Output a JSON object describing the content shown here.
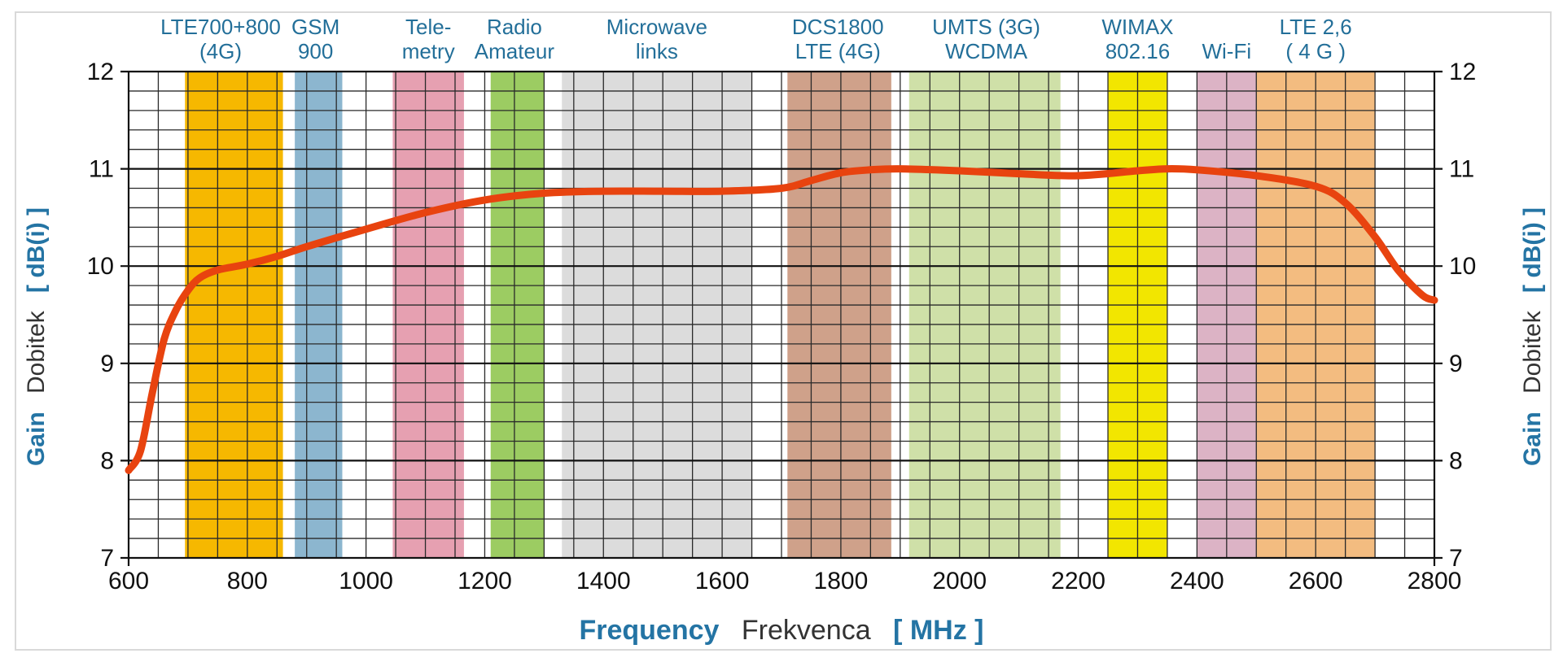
{
  "chart_data": {
    "type": "line",
    "title": "",
    "xlabel": {
      "en": "Frequency",
      "local": "Frekvenca",
      "unit": "[ MHz ]"
    },
    "ylabel": {
      "en": "Gain",
      "local": "Dobitek",
      "unit": "[ dB(i) ]"
    },
    "xlim": [
      600,
      2800
    ],
    "ylim": [
      7,
      12
    ],
    "x_ticks": [
      600,
      800,
      1000,
      1200,
      1400,
      1600,
      1800,
      2000,
      2200,
      2400,
      2600,
      2800
    ],
    "y_ticks": [
      7,
      8,
      9,
      10,
      11,
      12
    ],
    "grid": true,
    "bands": [
      {
        "lines": [
          "LTE700+800",
          "(4G)"
        ],
        "label_center": 755,
        "from": 695,
        "to": 860,
        "color": "#f6b800"
      },
      {
        "lines": [
          "GSM",
          "900"
        ],
        "label_center": 915,
        "from": 880,
        "to": 960,
        "color": "#8cb6cf"
      },
      {
        "lines": [
          "Tele-",
          "metry"
        ],
        "label_center": 1105,
        "from": 1045,
        "to": 1165,
        "color": "#e6a0b1"
      },
      {
        "lines": [
          "Radio",
          "Amateur"
        ],
        "label_center": 1250,
        "from": 1210,
        "to": 1300,
        "color": "#9ccc62"
      },
      {
        "lines": [
          "Microwave",
          "links"
        ],
        "label_center": 1490,
        "from": 1330,
        "to": 1650,
        "color": "#dcdcdc"
      },
      {
        "lines": [
          "DCS1800",
          "LTE (4G)"
        ],
        "label_center": 1795,
        "from": 1710,
        "to": 1885,
        "color": "#cfa18a"
      },
      {
        "lines": [
          "UMTS (3G)",
          "WCDMA"
        ],
        "label_center": 2045,
        "from": 1915,
        "to": 2170,
        "color": "#cfe0a8"
      },
      {
        "lines": [
          "WIMAX",
          "802.16"
        ],
        "label_center": 2300,
        "from": 2250,
        "to": 2350,
        "color": "#f2e600"
      },
      {
        "lines": [
          "",
          "Wi-Fi"
        ],
        "label_center": 2450,
        "from": 2400,
        "to": 2500,
        "color": "#dcb3c5"
      },
      {
        "lines": [
          "LTE 2,6",
          "( 4 G )"
        ],
        "label_center": 2600,
        "from": 2500,
        "to": 2700,
        "color": "#f3bc80"
      }
    ],
    "series": [
      {
        "name": "Gain",
        "color": "#e8430f",
        "x": [
          600,
          620,
          640,
          660,
          680,
          700,
          720,
          750,
          800,
          850,
          900,
          1000,
          1100,
          1200,
          1300,
          1400,
          1500,
          1600,
          1700,
          1750,
          1800,
          1850,
          1900,
          2000,
          2100,
          2200,
          2300,
          2350,
          2400,
          2500,
          2600,
          2650,
          2700,
          2740,
          2780,
          2800
        ],
        "y": [
          7.9,
          8.1,
          8.7,
          9.25,
          9.55,
          9.75,
          9.88,
          9.96,
          10.02,
          10.1,
          10.2,
          10.38,
          10.55,
          10.68,
          10.75,
          10.77,
          10.77,
          10.77,
          10.8,
          10.88,
          10.96,
          10.99,
          11.0,
          10.98,
          10.95,
          10.93,
          10.98,
          11.0,
          10.99,
          10.93,
          10.82,
          10.65,
          10.3,
          9.95,
          9.7,
          9.65
        ]
      }
    ]
  }
}
